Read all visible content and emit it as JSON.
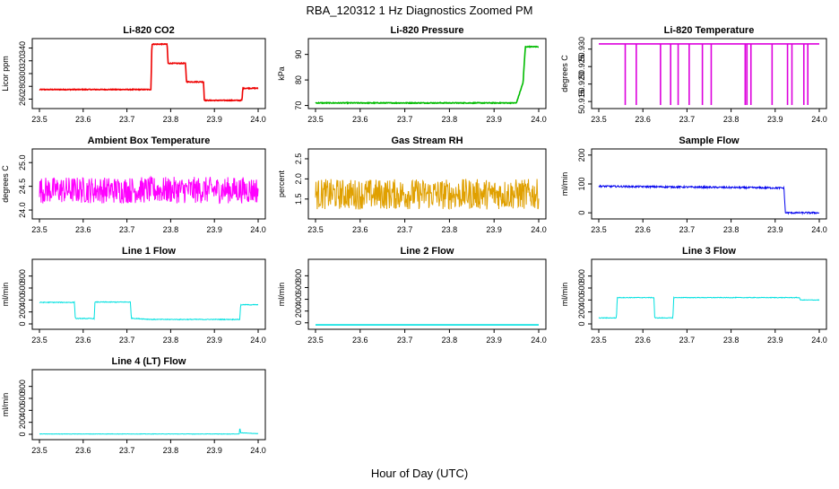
{
  "figure": {
    "title": "RBA_120312  1 Hz Diagnostics Zoomed PM",
    "xlabel": "Hour of Day (UTC)"
  },
  "chart_data": [
    {
      "type": "line",
      "title": "Li-820 CO2",
      "ylabel": "Licor ppm",
      "color": "#ee0000",
      "xlim": [
        23.5,
        24.0
      ],
      "ylim": [
        248,
        352
      ],
      "xticks": [
        "23.5",
        "23.6",
        "23.7",
        "23.8",
        "23.9",
        "24.0"
      ],
      "yticks": [
        260,
        280,
        300,
        320,
        340
      ],
      "noise": 0.6,
      "segments": [
        [
          23.5,
          275
        ],
        [
          23.755,
          275
        ],
        [
          23.757,
          346
        ],
        [
          23.792,
          346
        ],
        [
          23.794,
          316
        ],
        [
          23.834,
          316
        ],
        [
          23.836,
          287
        ],
        [
          23.875,
          287
        ],
        [
          23.877,
          258
        ],
        [
          23.963,
          258
        ],
        [
          23.965,
          277
        ],
        [
          24.0,
          277
        ]
      ]
    },
    {
      "type": "line",
      "title": "Li-820 Pressure",
      "ylabel": "kPa",
      "color": "#00bb00",
      "xlim": [
        23.5,
        24.0
      ],
      "ylim": [
        69.5,
        95.5
      ],
      "xticks": [
        "23.5",
        "23.6",
        "23.7",
        "23.8",
        "23.9",
        "24.0"
      ],
      "yticks": [
        70,
        80,
        90
      ],
      "noise": 0.15,
      "segments": [
        [
          23.5,
          71
        ],
        [
          23.95,
          71
        ],
        [
          23.965,
          79
        ],
        [
          23.97,
          93
        ],
        [
          24.0,
          93
        ]
      ]
    },
    {
      "type": "line",
      "title": "Li-820 Temperature",
      "ylabel": "degrees C",
      "color": "#dd00dd",
      "xlim": [
        23.5,
        24.0
      ],
      "ylim": [
        50.9135,
        50.9325
      ],
      "xticks": [
        "23.5",
        "23.6",
        "23.7",
        "23.8",
        "23.9",
        "24.0"
      ],
      "yticks": [
        "50.915",
        "50.920",
        "50.925",
        "50.930"
      ],
      "ytick_values": [
        50.915,
        50.92,
        50.925,
        50.93
      ],
      "noise": 0,
      "segments": [
        [
          23.5,
          50.9315
        ],
        [
          24.0,
          50.9315
        ]
      ],
      "spikes": [
        [
          23.56,
          50.914
        ],
        [
          23.585,
          50.914
        ],
        [
          23.64,
          50.914
        ],
        [
          23.663,
          50.914
        ],
        [
          23.68,
          50.914
        ],
        [
          23.705,
          50.914
        ],
        [
          23.735,
          50.914
        ],
        [
          23.755,
          50.914
        ],
        [
          23.832,
          50.914
        ],
        [
          23.836,
          50.914
        ],
        [
          23.845,
          50.914
        ],
        [
          23.893,
          50.914
        ],
        [
          23.928,
          50.914
        ],
        [
          23.938,
          50.914
        ],
        [
          23.965,
          50.914
        ],
        [
          23.974,
          50.914
        ]
      ]
    },
    {
      "type": "line",
      "title": "Ambient Box Temperature",
      "ylabel": "degrees C",
      "color": "#ff00ff",
      "xlim": [
        23.5,
        24.0
      ],
      "ylim": [
        23.85,
        25.25
      ],
      "xticks": [
        "23.5",
        "23.6",
        "23.7",
        "23.8",
        "23.9",
        "24.0"
      ],
      "yticks": [
        "24.0",
        "24.5",
        "25.0"
      ],
      "ytick_values": [
        24.0,
        24.5,
        25.0
      ],
      "noise": 0.28,
      "segments": [
        [
          23.5,
          24.42
        ],
        [
          24.0,
          24.42
        ]
      ]
    },
    {
      "type": "line",
      "title": "Gas Stream RH",
      "ylabel": "percent",
      "color": "#e0a000",
      "xlim": [
        23.5,
        24.0
      ],
      "ylim": [
        1.05,
        2.7
      ],
      "xticks": [
        "23.5",
        "23.6",
        "23.7",
        "23.8",
        "23.9",
        "24.0"
      ],
      "yticks": [
        "1.5",
        "2.0",
        "2.5"
      ],
      "ytick_values": [
        1.5,
        2.0,
        2.5
      ],
      "noise": 0.38,
      "segments": [
        [
          23.5,
          1.62
        ],
        [
          24.0,
          1.62
        ]
      ]
    },
    {
      "type": "line",
      "title": "Sample Flow",
      "ylabel": "ml/min",
      "color": "#0000ee",
      "xlim": [
        23.5,
        24.0
      ],
      "ylim": [
        -15,
        215
      ],
      "xticks": [
        "23.5",
        "23.6",
        "23.7",
        "23.8",
        "23.9",
        "24.0"
      ],
      "yticks": [
        0,
        100,
        200
      ],
      "noise": 3,
      "segments": [
        [
          23.5,
          92
        ],
        [
          23.92,
          86
        ],
        [
          23.923,
          0
        ],
        [
          24.0,
          0
        ]
      ]
    },
    {
      "type": "line",
      "title": "Line 1 Flow",
      "ylabel": "ml/min",
      "color": "#00e0e0",
      "xlim": [
        23.5,
        24.0
      ],
      "ylim": [
        -60,
        1050
      ],
      "xticks": [
        "23.5",
        "23.6",
        "23.7",
        "23.8",
        "23.9",
        "24.0"
      ],
      "yticks": [
        0,
        200,
        400,
        600,
        800
      ],
      "noise": 6,
      "segments": [
        [
          23.5,
          360
        ],
        [
          23.58,
          360
        ],
        [
          23.582,
          90
        ],
        [
          23.625,
          90
        ],
        [
          23.627,
          365
        ],
        [
          23.708,
          365
        ],
        [
          23.71,
          95
        ],
        [
          23.755,
          75
        ],
        [
          23.958,
          75
        ],
        [
          23.96,
          320
        ],
        [
          24.0,
          320
        ]
      ]
    },
    {
      "type": "line",
      "title": "Line 2 Flow",
      "ylabel": "ml/min",
      "color": "#00e0e0",
      "xlim": [
        23.5,
        24.0
      ],
      "ylim": [
        -80,
        1050
      ],
      "xticks": [
        "23.5",
        "23.6",
        "23.7",
        "23.8",
        "23.9",
        "24.0"
      ],
      "yticks": [
        0,
        200,
        400,
        600,
        800
      ],
      "noise": 0,
      "segments": [
        [
          23.5,
          -35
        ],
        [
          24.0,
          -35
        ]
      ]
    },
    {
      "type": "line",
      "title": "Line 3 Flow",
      "ylabel": "ml/min",
      "color": "#00e0e0",
      "xlim": [
        23.5,
        24.0
      ],
      "ylim": [
        -60,
        1050
      ],
      "xticks": [
        "23.5",
        "23.6",
        "23.7",
        "23.8",
        "23.9",
        "24.0"
      ],
      "yticks": [
        0,
        200,
        400,
        600,
        800
      ],
      "noise": 5,
      "segments": [
        [
          23.5,
          100
        ],
        [
          23.54,
          100
        ],
        [
          23.542,
          440
        ],
        [
          23.625,
          440
        ],
        [
          23.627,
          100
        ],
        [
          23.668,
          100
        ],
        [
          23.67,
          440
        ],
        [
          23.955,
          440
        ],
        [
          23.957,
          400
        ],
        [
          24.0,
          400
        ]
      ]
    },
    {
      "type": "line",
      "title": "Line 4 (LT) Flow",
      "ylabel": "ml/min",
      "color": "#00e0e0",
      "xlim": [
        23.5,
        24.0
      ],
      "ylim": [
        -60,
        1050
      ],
      "xticks": [
        "23.5",
        "23.6",
        "23.7",
        "23.8",
        "23.9",
        "24.0"
      ],
      "yticks": [
        0,
        200,
        400,
        600,
        800
      ],
      "noise": 3,
      "segments": [
        [
          23.5,
          5
        ],
        [
          23.957,
          5
        ],
        [
          23.958,
          120
        ],
        [
          23.96,
          25
        ],
        [
          24.0,
          10
        ]
      ]
    }
  ]
}
